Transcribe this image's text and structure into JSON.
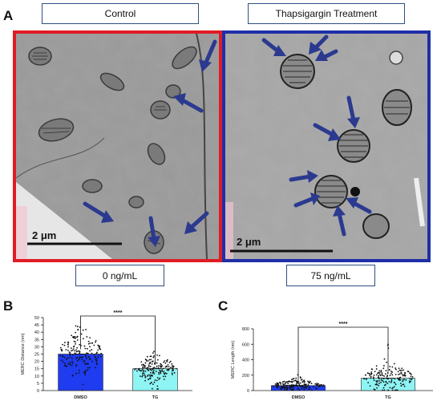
{
  "panel_a": {
    "letter": "A",
    "control_label": "Control",
    "treatment_label": "Thapsigargin Treatment",
    "control_dose": "0 ng/mL",
    "treatment_dose": "75 ng/mL",
    "control_scale": "2 μm",
    "treatment_scale": "2 μm",
    "control_frame_color": "#e01b24",
    "treatment_frame_color": "#1f2fa8",
    "arrow_color": "#2b3a8f"
  },
  "chart_data": [
    {
      "panel": "B",
      "type": "bar",
      "categories": [
        "DMSO",
        "TG"
      ],
      "values": [
        25,
        15
      ],
      "ylabel": "MERC Distance (nm)",
      "ylim": [
        0,
        50
      ],
      "yticks": [
        0,
        5,
        10,
        15,
        20,
        25,
        30,
        35,
        40,
        45,
        50
      ],
      "significance": "****",
      "bar_colors": [
        "#1f3cf0",
        "#8ef4f4"
      ],
      "grid": false
    },
    {
      "panel": "C",
      "type": "bar",
      "categories": [
        "DMSO",
        "TG"
      ],
      "values": [
        65,
        160
      ],
      "ylabel": "MERC Length (nm)",
      "ylim": [
        0,
        800
      ],
      "yticks": [
        0,
        200,
        400,
        600,
        800
      ],
      "significance": "****",
      "bar_colors": [
        "#1f3cf0",
        "#8ef4f4"
      ],
      "grid": false
    }
  ]
}
